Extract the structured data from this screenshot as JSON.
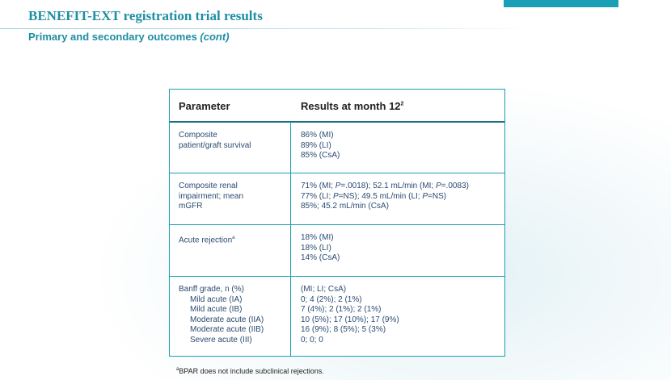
{
  "header": {
    "title": "BENEFIT-EXT registration trial results",
    "subtitle_main": "Primary and secondary outcomes ",
    "subtitle_cont": "(cont)"
  },
  "table": {
    "col_parameter": "Parameter",
    "col_results": "Results at month 12",
    "col_results_sup": "2",
    "rows": [
      {
        "parameter": [
          "Composite",
          "patient/graft survival"
        ],
        "results": [
          "86% (MI)",
          "89% (LI)",
          "85% (CsA)"
        ]
      },
      {
        "parameter": [
          "Composite renal",
          "impairment; mean",
          "mGFR"
        ],
        "results": [
          [
            "71% (MI; ",
            "P",
            "=.0018); 52.1 mL/min (MI; ",
            "P",
            "=.0083)"
          ],
          [
            "77% (LI; ",
            "P",
            "=NS); 49.5 mL/min (LI; ",
            "P",
            "=NS)"
          ],
          [
            "85%; 45.2 mL/min (CsA)"
          ]
        ]
      },
      {
        "parameter": [
          "Acute rejection"
        ],
        "parameter_sup": "a",
        "results": [
          "18% (MI)",
          "18% (LI)",
          "14% (CsA)"
        ]
      },
      {
        "parameter": [
          "Banff grade, n (%)",
          "Mild acute (IA)",
          "Mild acute (IB)",
          "Moderate acute (IIA)",
          "Moderate acute (IIB)",
          "Severe acute (III)"
        ],
        "results": [
          "(MI; LI; CsA)",
          "0; 4 (2%); 2 (1%)",
          "7 (4%); 2 (1%); 2 (1%)",
          "10 (5%); 17 (10%); 17 (9%)",
          "16 (9%); 8 (5%); 5 (3%)",
          "0; 0; 0"
        ]
      }
    ]
  },
  "footnote": {
    "sup": "a",
    "text": "BPAR does not include subclinical rejections."
  },
  "colors": {
    "accent": "#1aa0b4",
    "title": "#1e8ea3",
    "cell_text": "#2b4a72"
  }
}
